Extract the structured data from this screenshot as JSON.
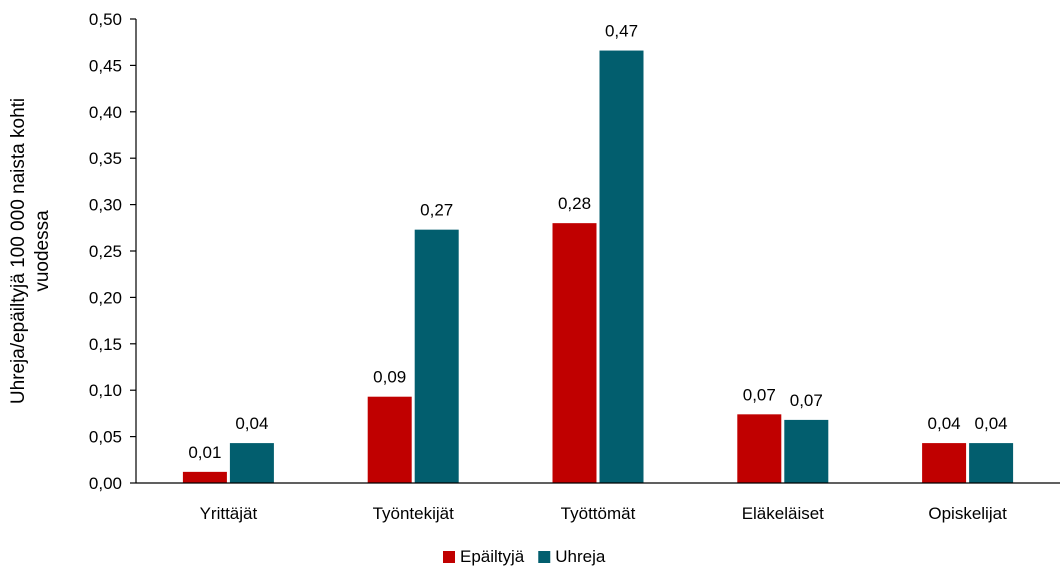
{
  "chart_data": {
    "type": "bar",
    "categories": [
      "Yrittäjät",
      "Työntekijät",
      "Työttömät",
      "Eläkeläiset",
      "Opiskelijat"
    ],
    "series": [
      {
        "name": "Epäiltyjä",
        "values": [
          0.012,
          0.093,
          0.28,
          0.074,
          0.043
        ],
        "labels": [
          "0,01",
          "0,09",
          "0,28",
          "0,07",
          "0,04"
        ],
        "color": "#c00000"
      },
      {
        "name": "Uhreja",
        "values": [
          0.043,
          0.273,
          0.466,
          0.068,
          0.043
        ],
        "labels": [
          "0,04",
          "0,27",
          "0,47",
          "0,07",
          "0,04"
        ],
        "color": "#025e6e"
      }
    ],
    "ylabel_lines": [
      "Uhreja/epäiltyjä 100 000 naista kohti",
      "vuodessa"
    ],
    "ylim": [
      0,
      0.5
    ],
    "yticks": [
      0,
      0.05,
      0.1,
      0.15,
      0.2,
      0.25,
      0.3,
      0.35,
      0.4,
      0.45,
      0.5
    ],
    "ytick_labels": [
      "0,00",
      "0,05",
      "0,10",
      "0,15",
      "0,20",
      "0,25",
      "0,30",
      "0,35",
      "0,40",
      "0,45",
      "0,50"
    ],
    "grid": false,
    "legend_position": "bottom"
  }
}
